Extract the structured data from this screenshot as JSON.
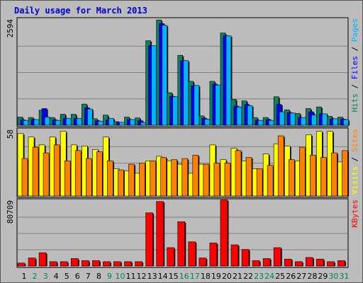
{
  "title": "Daily usage for March 2013",
  "colors": {
    "background": "#bcbcbc",
    "panel": "#bcbcbc",
    "title": "#0000cc",
    "grid": "#808080",
    "hits": "#0f8060",
    "files": "#0000ff",
    "pages": "#00b4ff",
    "visits": "#ffff00",
    "sites": "#ff8000",
    "kbytes": "#ff0000",
    "weekday": "#000000",
    "weekend": "#00805a"
  },
  "chart_data": [
    {
      "type": "bar",
      "panel": "hits-files-pages",
      "ylabel_max": "2594",
      "ymax": 2594,
      "legend": [
        {
          "label": "Hits",
          "color": "#0f8060"
        },
        {
          "label": "Files",
          "color": "#0000ff"
        },
        {
          "label": "Pages",
          "color": "#00b4ff"
        }
      ],
      "separator": "/",
      "categories": [
        "1",
        "2",
        "3",
        "4",
        "5",
        "6",
        "7",
        "8",
        "9",
        "10",
        "11",
        "12",
        "13",
        "14",
        "15",
        "16",
        "17",
        "18",
        "19",
        "20",
        "21",
        "22",
        "23",
        "24",
        "25",
        "26",
        "27",
        "28",
        "29",
        "30",
        "31"
      ],
      "series": [
        {
          "name": "Hits",
          "values": [
            200,
            190,
            370,
            190,
            270,
            270,
            520,
            160,
            250,
            90,
            200,
            180,
            2080,
            2590,
            800,
            1720,
            1080,
            230,
            1080,
            2270,
            640,
            600,
            190,
            190,
            700,
            380,
            290,
            410,
            450,
            220,
            200
          ]
        },
        {
          "name": "Files",
          "values": [
            130,
            140,
            410,
            130,
            170,
            170,
            430,
            110,
            130,
            70,
            140,
            110,
            1960,
            2500,
            710,
            1590,
            970,
            170,
            1010,
            2200,
            470,
            510,
            120,
            140,
            510,
            310,
            190,
            330,
            280,
            150,
            150
          ]
        },
        {
          "name": "Pages",
          "values": [
            120,
            140,
            200,
            120,
            170,
            170,
            400,
            100,
            170,
            70,
            140,
            70,
            1960,
            2460,
            700,
            1590,
            980,
            150,
            990,
            2200,
            450,
            480,
            120,
            120,
            330,
            300,
            190,
            250,
            280,
            160,
            140
          ]
        }
      ]
    },
    {
      "type": "bar",
      "panel": "visits-sites",
      "ylabel_max": "58",
      "ymax": 58,
      "legend": [
        {
          "label": "Visits",
          "color": "#ffff00"
        },
        {
          "label": "Sites",
          "color": "#ff8000"
        }
      ],
      "separator": "/",
      "categories": [
        "1",
        "2",
        "3",
        "4",
        "5",
        "6",
        "7",
        "8",
        "9",
        "10",
        "11",
        "12",
        "13",
        "14",
        "15",
        "16",
        "17",
        "18",
        "19",
        "20",
        "21",
        "22",
        "23",
        "24",
        "25",
        "26",
        "27",
        "28",
        "29",
        "30",
        "31"
      ],
      "series": [
        {
          "name": "Visits",
          "values": [
            55,
            52,
            45,
            52,
            57,
            45,
            44,
            41,
            52,
            24,
            22,
            20,
            31,
            35,
            31,
            28,
            20,
            28,
            45,
            32,
            42,
            31,
            24,
            37,
            46,
            44,
            31,
            54,
            57,
            57,
            30
          ]
        },
        {
          "name": "Sites",
          "values": [
            33,
            43,
            38,
            45,
            31,
            40,
            33,
            39,
            31,
            23,
            28,
            29,
            31,
            34,
            32,
            33,
            36,
            28,
            29,
            29,
            40,
            34,
            24,
            27,
            53,
            32,
            43,
            36,
            34,
            38,
            40
          ]
        }
      ]
    },
    {
      "type": "bar",
      "panel": "kbytes",
      "ylabel_max": "80709",
      "ymax": 80709,
      "legend": [
        {
          "label": "KBytes",
          "color": "#ff0000"
        }
      ],
      "categories": [
        "1",
        "2",
        "3",
        "4",
        "5",
        "6",
        "7",
        "8",
        "9",
        "10",
        "11",
        "12",
        "13",
        "14",
        "15",
        "16",
        "17",
        "18",
        "19",
        "20",
        "21",
        "22",
        "23",
        "24",
        "25",
        "26",
        "27",
        "28",
        "29",
        "30",
        "31"
      ],
      "series": [
        {
          "name": "KBytes",
          "values": [
            3700,
            10000,
            16500,
            5400,
            5400,
            9300,
            6700,
            6700,
            5400,
            5400,
            5400,
            5400,
            66000,
            80000,
            22800,
            55000,
            30000,
            10000,
            28600,
            82000,
            26300,
            20600,
            6700,
            9300,
            22800,
            8600,
            5400,
            10600,
            8600,
            5400,
            6700
          ]
        }
      ]
    }
  ],
  "days": {
    "labels": [
      "1",
      "2",
      "3",
      "4",
      "5",
      "6",
      "7",
      "8",
      "9",
      "10",
      "11",
      "12",
      "13",
      "14",
      "15",
      "16",
      "17",
      "18",
      "19",
      "20",
      "21",
      "22",
      "23",
      "24",
      "25",
      "26",
      "27",
      "28",
      "29",
      "30",
      "31"
    ],
    "weekend": [
      false,
      true,
      true,
      false,
      false,
      false,
      false,
      false,
      true,
      true,
      false,
      false,
      false,
      false,
      false,
      true,
      true,
      false,
      false,
      false,
      false,
      false,
      true,
      true,
      false,
      false,
      false,
      false,
      false,
      true,
      true
    ]
  }
}
